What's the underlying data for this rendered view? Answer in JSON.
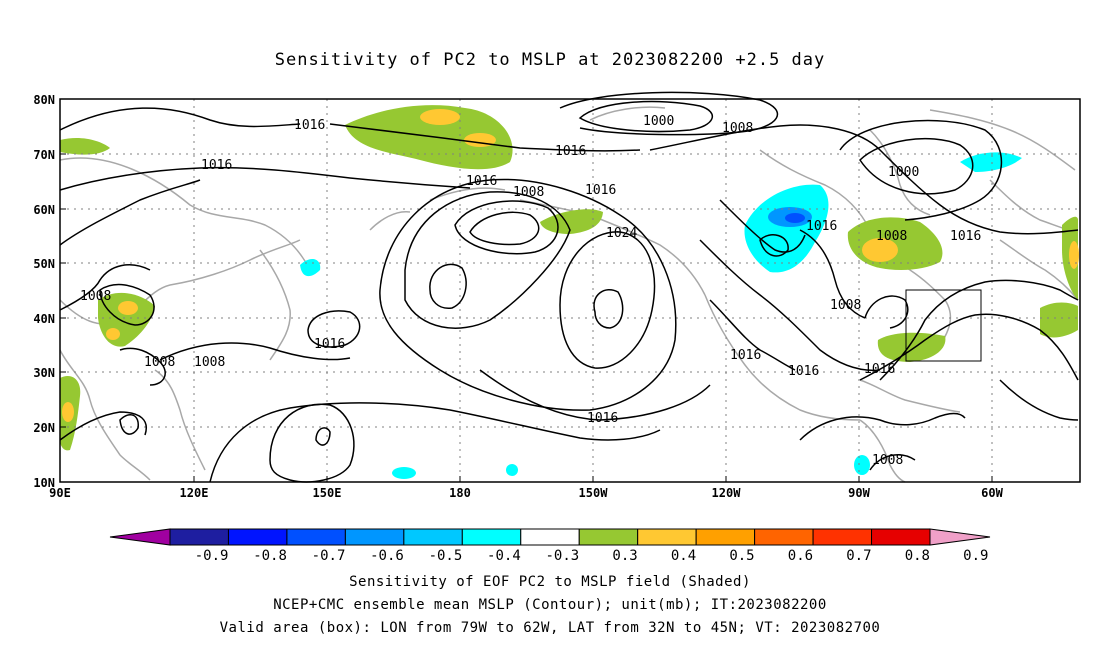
{
  "title": "Sensitivity of PC2 to MSLP at 2023082200 +2.5 day",
  "lat_labels": [
    "80N",
    "70N",
    "60N",
    "50N",
    "40N",
    "30N",
    "20N",
    "10N"
  ],
  "lon_labels": [
    "90E",
    "120E",
    "150E",
    "180",
    "150W",
    "120W",
    "90W",
    "60W"
  ],
  "contour_labels": [
    {
      "text": "1016"
    },
    {
      "text": "1000"
    },
    {
      "text": "1008"
    },
    {
      "text": "1016"
    },
    {
      "text": "1016"
    },
    {
      "text": "1016"
    },
    {
      "text": "1008"
    },
    {
      "text": "1016"
    },
    {
      "text": "1024"
    },
    {
      "text": "1016"
    },
    {
      "text": "1000"
    },
    {
      "text": "1008"
    },
    {
      "text": "1016"
    },
    {
      "text": "1008"
    },
    {
      "text": "1016"
    },
    {
      "text": "1008"
    },
    {
      "text": "1008"
    },
    {
      "text": "1008"
    },
    {
      "text": "1016"
    },
    {
      "text": "1016"
    },
    {
      "text": "1016"
    },
    {
      "text": "1016"
    },
    {
      "text": "1008"
    }
  ],
  "colorbar": {
    "labels": [
      "-0.9",
      "-0.8",
      "-0.7",
      "-0.6",
      "-0.5",
      "-0.4",
      "-0.3",
      "0.3",
      "0.4",
      "0.5",
      "0.6",
      "0.7",
      "0.8",
      "0.9"
    ],
    "colors": [
      "#a000a0",
      "#1e1ea0",
      "#0014ff",
      "#0050ff",
      "#0096ff",
      "#00c8ff",
      "#00ffff",
      "#ffffff",
      "#96c832",
      "#ffc832",
      "#ffa000",
      "#ff6400",
      "#ff3200",
      "#e60000",
      "#f0a0c8"
    ]
  },
  "captions": [
    "Sensitivity of EOF PC2 to MSLP field (Shaded)",
    "NCEP+CMC ensemble mean MSLP (Contour); unit(mb); IT:2023082200",
    "Valid area (box): LON from 79W to 62W, LAT from 32N to 45N; VT: 2023082700"
  ]
}
